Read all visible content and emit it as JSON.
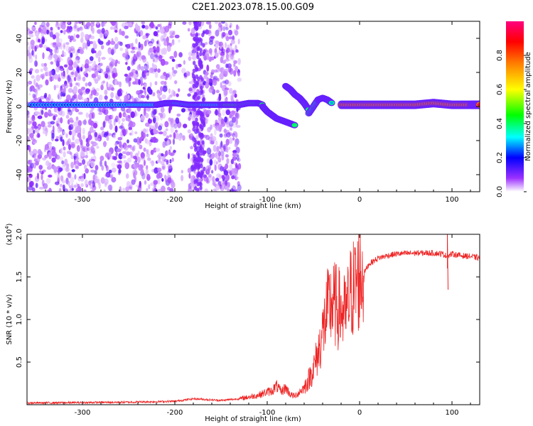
{
  "title": "C2E1.2023.078.15.00.G09",
  "chart_data": [
    {
      "type": "heatmap",
      "xlabel": "Height of straight line (km)",
      "ylabel": "Frequency (Hz)",
      "xlim": [
        -360,
        130
      ],
      "ylim": [
        -50,
        50
      ],
      "x_ticks": [
        -300,
        -200,
        -100,
        0,
        100
      ],
      "y_ticks": [
        -40,
        -20,
        0,
        20,
        40
      ],
      "colorbar": {
        "label": "Normalized spectral amplitude",
        "range": [
          0.0,
          1.0
        ],
        "ticks": [
          "0.0",
          "0.2",
          "0.4",
          "0.6",
          "0.8"
        ],
        "colors": [
          "#ffffff",
          "#8000ff",
          "#0000ff",
          "#00ffff",
          "#00ff00",
          "#ffff00",
          "#ff8000",
          "#ff0000",
          "#ff0080"
        ]
      },
      "ridges": [
        {
          "x": [
            -355,
            -300,
            -250,
            -220,
            -210,
            -200,
            -185,
            -170,
            -150,
            -140
          ],
          "y": [
            1,
            1,
            1,
            1,
            2,
            2,
            1,
            1,
            1,
            1
          ],
          "amplitude": 0.15
        },
        {
          "x": [
            -145,
            -130,
            -120,
            -110,
            -105
          ],
          "y": [
            1,
            1,
            2,
            2,
            1
          ],
          "amplitude": 0.35
        },
        {
          "x": [
            -105,
            -100,
            -95,
            -90,
            -85,
            -80,
            -75,
            -70
          ],
          "y": [
            0,
            -3,
            -5,
            -7,
            -8,
            -9,
            -10,
            -11
          ],
          "amplitude": 0.35
        },
        {
          "x": [
            -80,
            -75,
            -70,
            -65,
            -60,
            -55
          ],
          "y": [
            12,
            10,
            7,
            5,
            2,
            -2
          ],
          "amplitude": 0.35
        },
        {
          "x": [
            -55,
            -45,
            -40,
            -35,
            -30
          ],
          "y": [
            -4,
            4,
            5,
            4,
            2
          ],
          "amplitude": 0.3
        },
        {
          "x": [
            -20,
            0,
            20,
            40,
            60,
            80,
            100,
            120,
            130
          ],
          "y": [
            1,
            1,
            1,
            1,
            1,
            2,
            1,
            1,
            1
          ],
          "amplitude": 0.95
        }
      ]
    },
    {
      "type": "line",
      "xlabel": "Height of straight line (km)",
      "ylabel": "SNR (10 * v/v)",
      "yscale_label": "(x10",
      "yscale_exp": "4",
      "yscale_close": ")",
      "xlim": [
        -360,
        130
      ],
      "ylim": [
        0,
        20000
      ],
      "x_ticks": [
        -300,
        -200,
        -100,
        0,
        100
      ],
      "y_tick_values": [
        5000,
        10000,
        15000,
        20000
      ],
      "y_tick_labels": [
        "0.5",
        "1.0",
        "1.5",
        "2.0"
      ],
      "series": [
        {
          "color": "#ee2222",
          "x": [
            -360,
            -300,
            -250,
            -200,
            -180,
            -150,
            -130,
            -120,
            -110,
            -100,
            -95,
            -90,
            -85,
            -80,
            -75,
            -70,
            -65,
            -60,
            -55,
            -50,
            -45,
            -40,
            -35,
            -30,
            -25,
            -20,
            -15,
            -10,
            -5,
            0,
            5,
            10,
            20,
            30,
            40,
            60,
            80,
            90,
            95,
            100,
            110,
            120,
            130
          ],
          "y": [
            200,
            250,
            300,
            400,
            700,
            500,
            700,
            900,
            1100,
            1500,
            1600,
            2200,
            1500,
            2000,
            1200,
            1000,
            1500,
            2000,
            3000,
            4200,
            6000,
            8500,
            11000,
            12000,
            11500,
            11000,
            10500,
            13000,
            14000,
            15000,
            15500,
            16500,
            17200,
            17500,
            17700,
            17800,
            17800,
            17700,
            17400,
            17700,
            17500,
            17400,
            17200
          ]
        }
      ]
    }
  ]
}
